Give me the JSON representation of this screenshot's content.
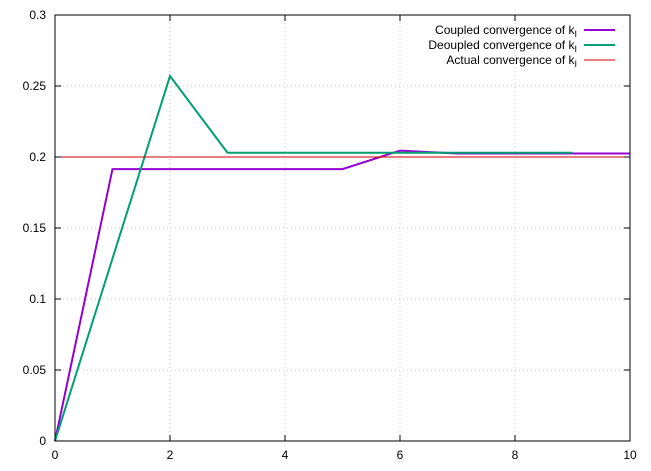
{
  "chart_data": {
    "type": "line",
    "title": "",
    "xlabel": "",
    "ylabel": "",
    "xlim": [
      0,
      10
    ],
    "ylim": [
      0,
      0.3
    ],
    "x_ticks": [
      0,
      2,
      4,
      6,
      8,
      10
    ],
    "y_ticks": [
      0,
      0.05,
      0.1,
      0.15,
      0.2,
      0.25,
      0.3
    ],
    "x_tick_labels": [
      "0",
      "2",
      "4",
      "6",
      "8",
      "10"
    ],
    "y_tick_labels": [
      "0",
      "0.05",
      "0.1",
      "0.15",
      "0.2",
      "0.25",
      "0.3"
    ],
    "grid": true,
    "legend_position": "top-right",
    "series": [
      {
        "name": "Coupled convergence of k",
        "name_subscript": "I",
        "color": "#9400d3",
        "x": [
          0,
          1,
          2,
          3,
          4,
          5,
          6,
          7,
          8,
          9,
          10
        ],
        "y": [
          0,
          0.1915,
          0.1915,
          0.1915,
          0.1915,
          0.1915,
          0.2045,
          0.2025,
          0.2025,
          0.2025,
          0.2025
        ]
      },
      {
        "name": "Deoupled convergence of k",
        "name_subscript": "I",
        "color": "#009e73",
        "x": [
          0,
          2,
          3,
          4,
          5,
          6,
          7,
          8,
          9
        ],
        "y": [
          0,
          0.257,
          0.203,
          0.203,
          0.203,
          0.203,
          0.203,
          0.203,
          0.203
        ]
      },
      {
        "name": "Actual convergence of k",
        "name_subscript": "I",
        "color": "#cc0000",
        "x": [
          0,
          10
        ],
        "y": [
          0.2,
          0.2
        ]
      }
    ]
  }
}
